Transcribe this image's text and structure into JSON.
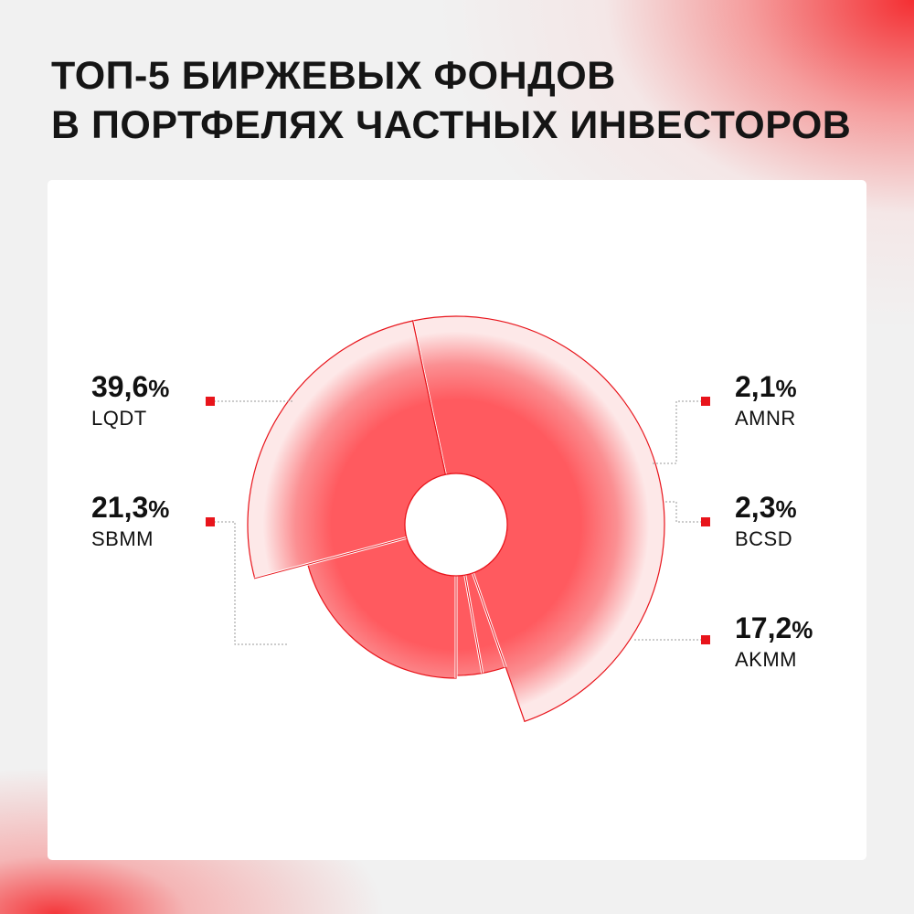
{
  "title": {
    "line1": "ТОП-5 БИРЖЕВЫХ ФОНДОВ",
    "line2": "В ПОРТФЕЛЯХ ЧАСТНЫХ ИНВЕСТОРОВ"
  },
  "colors": {
    "accent": "#e8141b",
    "slice_light": "#fde8e8",
    "slice_core": "#ff5a5f",
    "text": "#111111"
  },
  "chart_data": {
    "type": "pie",
    "title": "ТОП-5 БИРЖЕВЫХ ФОНДОВ В ПОРТФЕЛЯХ ЧАСТНЫХ ИНВЕСТОРОВ",
    "slices": [
      {
        "name": "LQDT",
        "value": 39.6,
        "label": "39,6%"
      },
      {
        "name": "AMNR",
        "value": 2.1,
        "label": "2,1%"
      },
      {
        "name": "BCSD",
        "value": 2.3,
        "label": "2,3%"
      },
      {
        "name": "AKMM",
        "value": 17.2,
        "label": "17,2%"
      },
      {
        "name": "SBMM",
        "value": 21.3,
        "label": "21,3%"
      }
    ]
  },
  "labels": {
    "lqdt": {
      "pct": "39,6",
      "sign": "%",
      "name": "LQDT"
    },
    "sbmm": {
      "pct": "21,3",
      "sign": "%",
      "name": "SBMM"
    },
    "amnr": {
      "pct": "2,1",
      "sign": "%",
      "name": "AMNR"
    },
    "bcsd": {
      "pct": "2,3",
      "sign": "%",
      "name": "BCSD"
    },
    "akmm": {
      "pct": "17,2",
      "sign": "%",
      "name": "AKMM"
    }
  }
}
